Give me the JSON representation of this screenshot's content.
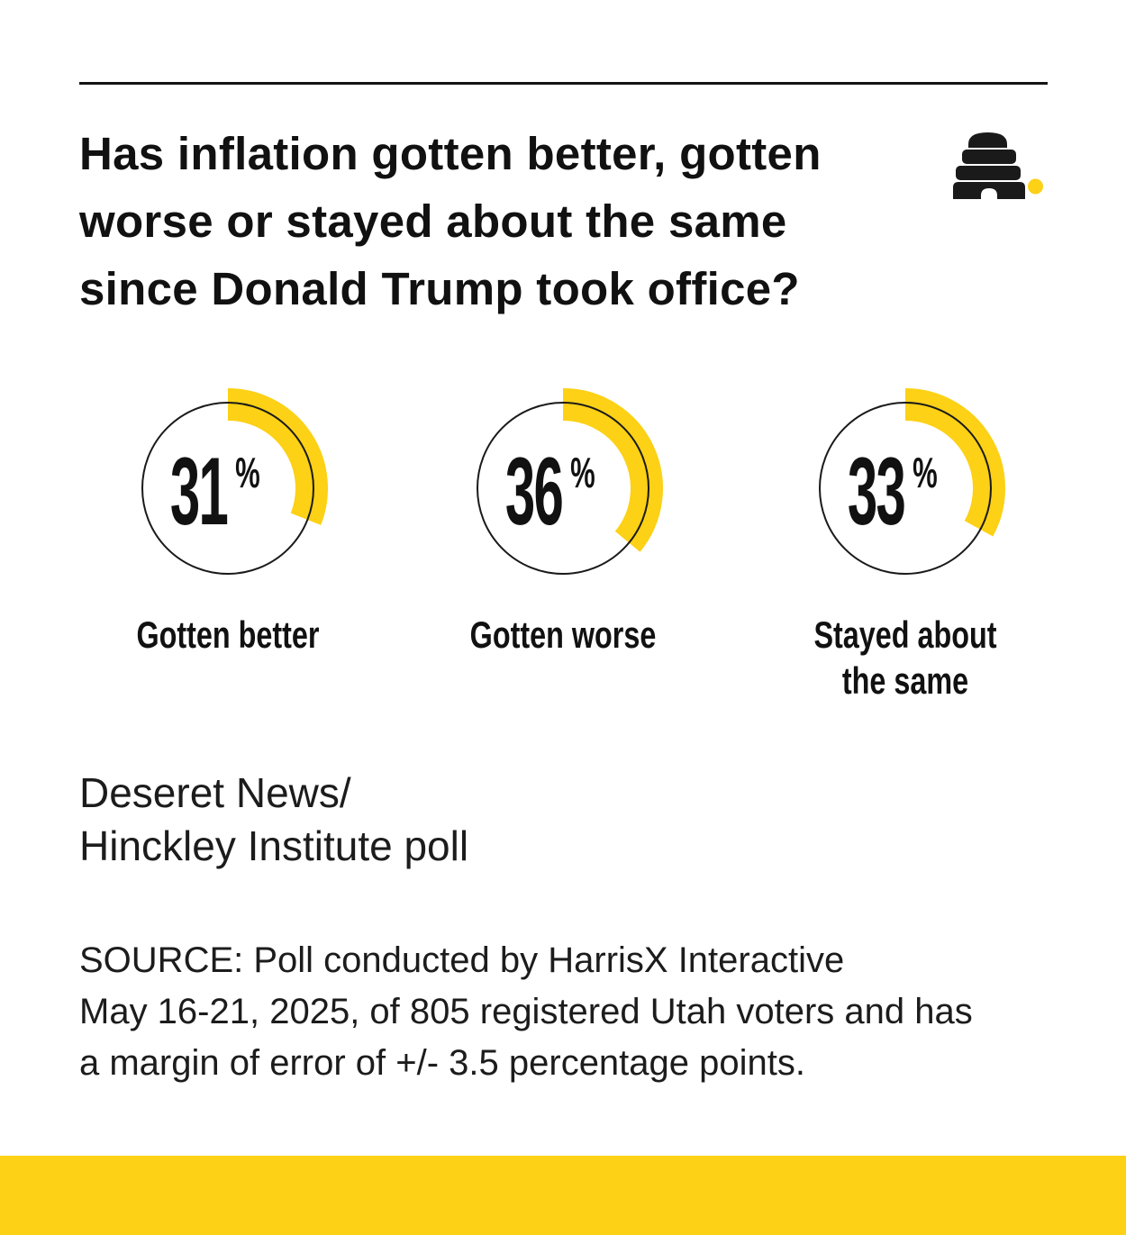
{
  "colors": {
    "accent_yellow": "#FCD116",
    "ink": "#121212"
  },
  "header": {
    "title_lines": [
      "Has inflation gotten better, gotten",
      "worse or stayed about the same",
      "since Donald Trump took office?"
    ],
    "logo": "deseret-news-beehive-logo"
  },
  "chart_data": {
    "type": "pie",
    "variant": "donut_gauge_trio",
    "title": "Has inflation gotten better, gotten worse or stayed about the same since Donald Trump took office?",
    "categories": [
      "Gotten better",
      "Gotten worse",
      "Stayed about the same"
    ],
    "values": [
      31,
      36,
      33
    ],
    "unit": "%",
    "arc_start": "top",
    "arc_direction": "clockwise",
    "legend_position": "below-each-gauge"
  },
  "gauges": [
    {
      "label_lines": [
        "Gotten better"
      ]
    },
    {
      "label_lines": [
        "Gotten worse"
      ]
    },
    {
      "label_lines": [
        "Stayed about",
        "the same"
      ]
    }
  ],
  "credit": {
    "line1": "Deseret News/",
    "line2": "Hinckley Institute poll"
  },
  "source": {
    "lines": [
      "SOURCE: Poll conducted by HarrisX Interactive",
      "May 16-21, 2025, of 805 registered Utah voters and has",
      "a margin of error of +/- 3.5 percentage points."
    ]
  }
}
